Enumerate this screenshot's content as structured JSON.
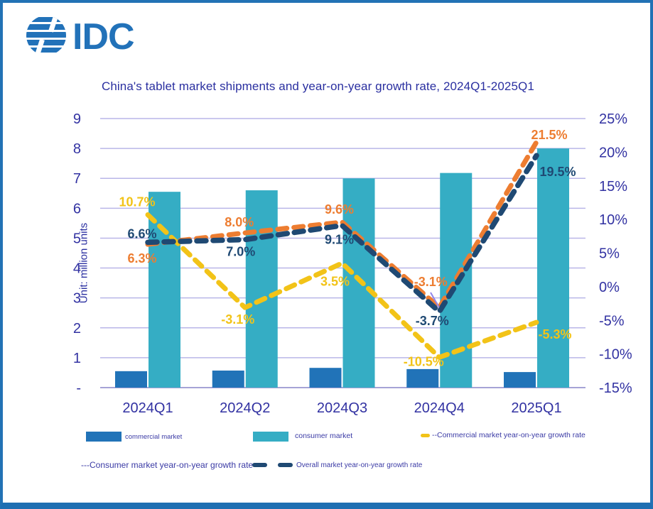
{
  "brand": {
    "logo_text": "IDC"
  },
  "chart_data": {
    "type": "combo_bar_line",
    "title": "China's tablet market shipments and year-on-year growth rate, 2024Q1-2025Q1",
    "unit_label": "Unit: million units",
    "categories": [
      "2024Q1",
      "2024Q2",
      "2024Q3",
      "2024Q4",
      "2025Q1"
    ],
    "bar_series": [
      {
        "name": "commercial market",
        "color": "#2173B8",
        "axis": "left",
        "values": [
          0.55,
          0.57,
          0.66,
          0.62,
          0.52
        ]
      },
      {
        "name": "consumer market",
        "color": "#35ADC4",
        "axis": "left",
        "values": [
          6.55,
          6.6,
          7.0,
          7.18,
          8.0
        ]
      }
    ],
    "line_series": [
      {
        "name": "Commercial market year-on-year growth rate",
        "color": "#F2C318",
        "axis": "right",
        "style": "dashed",
        "values": [
          10.7,
          -3.1,
          3.5,
          -10.5,
          -5.3
        ]
      },
      {
        "name": "Consumer market year-on-year growth rate",
        "color": "#ED7D31",
        "axis": "right",
        "style": "dashed",
        "values": [
          6.3,
          8.0,
          9.6,
          -3.1,
          21.5
        ]
      },
      {
        "name": "Overall market year-on-year growth rate",
        "color": "#1F4973",
        "axis": "right",
        "style": "dashed",
        "values": [
          6.6,
          7.0,
          9.1,
          -3.7,
          19.5
        ]
      }
    ],
    "left_axis": {
      "min": 0,
      "max": 9,
      "ticks": [
        "9",
        "8",
        "7",
        "6",
        "5",
        "4",
        "3",
        "2",
        "1",
        "-"
      ]
    },
    "right_axis": {
      "min": -15,
      "max": 25,
      "ticks": [
        "25%",
        "20%",
        "15%",
        "10%",
        "5%",
        "0%",
        "-5%",
        "-10%",
        "-15%"
      ]
    },
    "grid": true,
    "colors": {
      "gridline": "#B9B6E8",
      "baseline": "#A6A3D6",
      "axis_text": "#3232A2",
      "title_text": "#2A2FA0",
      "label_leader": "#9186E9",
      "border": "#2272B5",
      "logo_blue": "#2272B9"
    }
  },
  "legend": {
    "row1": [
      {
        "label": "commercial market"
      },
      {
        "label": "consumer market"
      },
      {
        "label": "--Commercial market year-on-year growth rate"
      }
    ],
    "row2": [
      {
        "label": "---Consumer market year-on-year growth rate"
      },
      {
        "label": "Overall market year-on-year growth rate"
      }
    ]
  }
}
